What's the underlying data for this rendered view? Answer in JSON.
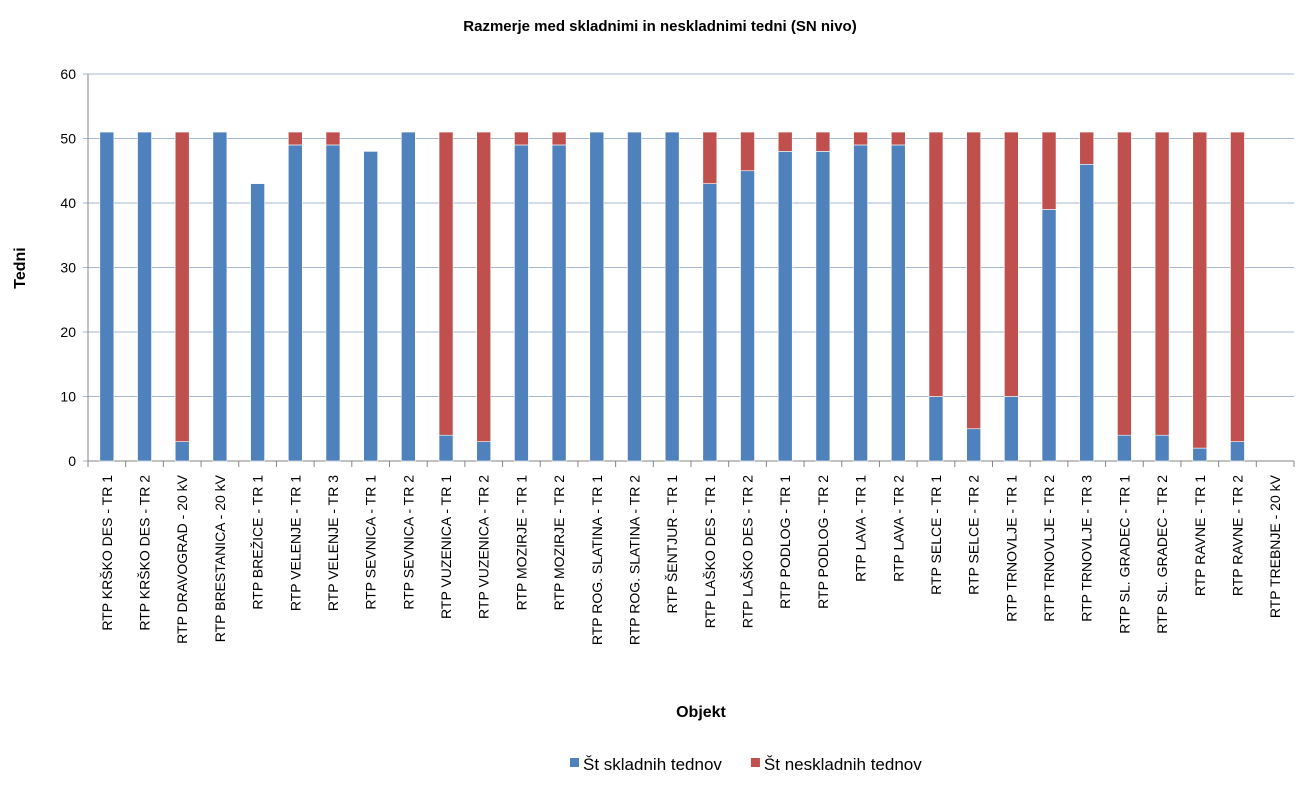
{
  "chart_data": {
    "type": "stacked_bar",
    "title": "Razmerje med skladnimi in neskladnimi tedni (SN nivo)",
    "x_label": "Objekt",
    "y_label": "Tedni",
    "categories": [
      "RTP KRŠKO DES - TR 1",
      "RTP KRŠKO DES - TR 2",
      "RTP DRAVOGRAD - 20 kV",
      "RTP BRESTANICA - 20 kV",
      "RTP BREŽICE - TR 1",
      "RTP VELENJE - TR 1",
      "RTP VELENJE - TR 3",
      "RTP SEVNICA - TR 1",
      "RTP SEVNICA - TR 2",
      "RTP VUZENICA - TR 1",
      "RTP VUZENICA - TR 2",
      "RTP MOZIRJE - TR 1",
      "RTP MOZIRJE - TR 2",
      "RTP ROG. SLATINA - TR 1",
      "RTP ROG. SLATINA - TR 2",
      "RTP ŠENTJUR - TR 1",
      "RTP LAŠKO DES - TR 1",
      "RTP LAŠKO DES - TR 2",
      "RTP PODLOG - TR 1",
      "RTP PODLOG - TR 2",
      "RTP LAVA - TR 1",
      "RTP LAVA - TR 2",
      "RTP SELCE - TR 1",
      "RTP SELCE - TR 2",
      "RTP TRNOVLJE - TR 1",
      "RTP TRNOVLJE - TR 2",
      "RTP TRNOVLJE - TR 3",
      "RTP SL. GRADEC - TR 1",
      "RTP SL. GRADEC - TR 2",
      "RTP RAVNE - TR 1",
      "RTP RAVNE - TR 2",
      "RTP TREBNJE - 20 kV"
    ],
    "series": [
      {
        "name": "Št skladnih tednov",
        "color": "#4f81bd",
        "values": [
          51,
          51,
          3,
          51,
          43,
          49,
          49,
          48,
          51,
          4,
          3,
          49,
          49,
          51,
          51,
          51,
          43,
          45,
          48,
          48,
          49,
          49,
          10,
          5,
          10,
          39,
          46,
          4,
          4,
          2,
          3,
          0
        ]
      },
      {
        "name": "Št neskladnih tednov",
        "color": "#c0504d",
        "values": [
          0,
          0,
          48,
          0,
          0,
          2,
          2,
          0,
          0,
          47,
          48,
          2,
          2,
          0,
          0,
          0,
          8,
          6,
          3,
          3,
          2,
          2,
          41,
          46,
          41,
          12,
          5,
          47,
          47,
          49,
          48,
          0
        ]
      }
    ],
    "ylim": [
      0,
      60
    ],
    "yticks": [
      0,
      10,
      20,
      30,
      40,
      50,
      60
    ],
    "grid": true,
    "legend": "bottom"
  }
}
